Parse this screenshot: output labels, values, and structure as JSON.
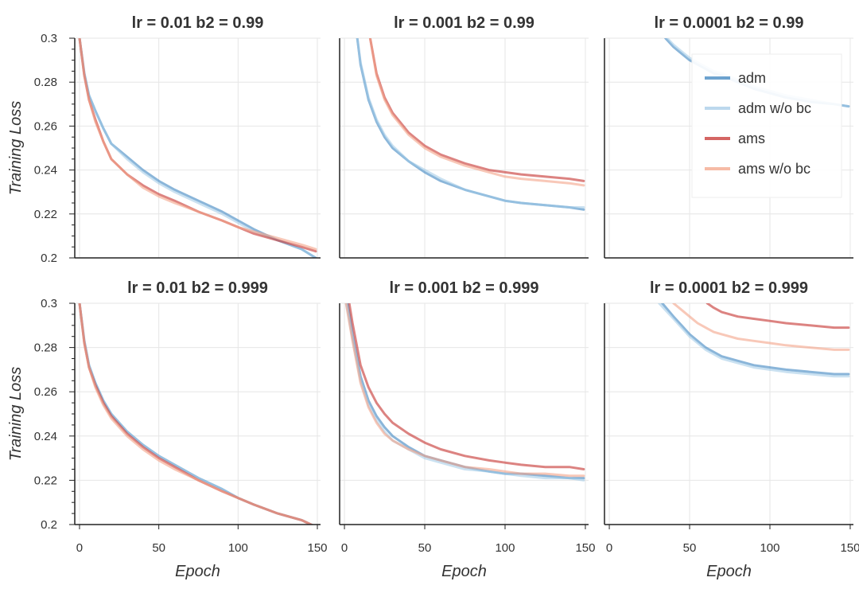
{
  "figure": {
    "x_label": "Epoch",
    "y_label": "Training Loss"
  },
  "series_styles": [
    {
      "key": "adm",
      "label": "adm",
      "color": "#3c84bf",
      "opacity": 0.6,
      "width": 3
    },
    {
      "key": "adm_wobc",
      "label": "adm w/o bc",
      "color": "#9fc8e6",
      "opacity": 0.55,
      "width": 3
    },
    {
      "key": "ams",
      "label": "ams",
      "color": "#c9403d",
      "opacity": 0.65,
      "width": 3
    },
    {
      "key": "ams_wobc",
      "label": "ams w/o bc",
      "color": "#f3a488",
      "opacity": 0.6,
      "width": 3
    }
  ],
  "legend": {
    "items": [
      "adm",
      "adm w/o bc",
      "ams",
      "ams w/o bc"
    ],
    "placement": "top-right of panel lr=0.0001 b2=0.99"
  },
  "chart_data": [
    {
      "type": "line",
      "title": "lr = 0.01   b2 = 0.99",
      "xlim": [
        -3,
        152
      ],
      "ylim": [
        0.2,
        0.3
      ],
      "xticks": [
        0,
        50,
        100,
        150
      ],
      "yticks": [
        "0.2",
        "0.22",
        "0.24",
        "0.26",
        "0.28",
        "0.3"
      ],
      "xlabel": "",
      "ylabel": "Training Loss",
      "series": [
        {
          "name": "adm",
          "x": [
            0,
            3,
            6,
            10,
            15,
            20,
            30,
            40,
            50,
            60,
            75,
            90,
            100,
            110,
            125,
            140,
            149
          ],
          "y": [
            0.3,
            0.284,
            0.274,
            0.267,
            0.259,
            0.252,
            0.246,
            0.24,
            0.235,
            0.231,
            0.226,
            0.221,
            0.217,
            0.213,
            0.208,
            0.204,
            0.2
          ]
        },
        {
          "name": "adm w/o bc",
          "x": [
            0,
            3,
            6,
            10,
            15,
            20,
            30,
            40,
            50,
            60,
            75,
            90,
            100,
            110,
            125,
            140,
            149
          ],
          "y": [
            0.3,
            0.284,
            0.274,
            0.267,
            0.259,
            0.252,
            0.245,
            0.239,
            0.234,
            0.23,
            0.225,
            0.22,
            0.216,
            0.212,
            0.208,
            0.204,
            0.2
          ]
        },
        {
          "name": "ams",
          "x": [
            0,
            3,
            6,
            10,
            15,
            20,
            30,
            40,
            50,
            60,
            75,
            90,
            100,
            110,
            125,
            140,
            149
          ],
          "y": [
            0.3,
            0.283,
            0.272,
            0.263,
            0.253,
            0.245,
            0.238,
            0.233,
            0.229,
            0.226,
            0.221,
            0.217,
            0.214,
            0.211,
            0.208,
            0.205,
            0.203
          ]
        },
        {
          "name": "ams w/o bc",
          "x": [
            0,
            3,
            6,
            10,
            15,
            20,
            30,
            40,
            50,
            60,
            75,
            90,
            100,
            110,
            125,
            140,
            149
          ],
          "y": [
            0.3,
            0.283,
            0.272,
            0.262,
            0.253,
            0.245,
            0.238,
            0.232,
            0.228,
            0.225,
            0.221,
            0.217,
            0.214,
            0.212,
            0.209,
            0.206,
            0.204
          ]
        }
      ]
    },
    {
      "type": "line",
      "title": "lr = 0.001   b2 = 0.99",
      "xlim": [
        -3,
        152
      ],
      "ylim": [
        0.2,
        0.3
      ],
      "xticks": [
        0,
        50,
        100,
        150
      ],
      "yticks": [
        "0.2",
        "0.22",
        "0.24",
        "0.26",
        "0.28",
        "0.3"
      ],
      "xlabel": "",
      "ylabel": "",
      "series": [
        {
          "name": "adm",
          "x": [
            8,
            10,
            15,
            20,
            25,
            30,
            40,
            50,
            60,
            75,
            90,
            100,
            110,
            125,
            140,
            149
          ],
          "y": [
            0.3,
            0.288,
            0.272,
            0.262,
            0.255,
            0.25,
            0.244,
            0.239,
            0.235,
            0.231,
            0.228,
            0.226,
            0.225,
            0.224,
            0.223,
            0.222
          ]
        },
        {
          "name": "adm w/o bc",
          "x": [
            8,
            10,
            15,
            20,
            25,
            30,
            40,
            50,
            60,
            75,
            90,
            100,
            110,
            125,
            140,
            149
          ],
          "y": [
            0.3,
            0.289,
            0.273,
            0.263,
            0.256,
            0.251,
            0.244,
            0.24,
            0.236,
            0.231,
            0.228,
            0.226,
            0.225,
            0.224,
            0.223,
            0.223
          ]
        },
        {
          "name": "ams",
          "x": [
            16,
            20,
            25,
            30,
            40,
            50,
            60,
            75,
            90,
            100,
            110,
            125,
            140,
            149
          ],
          "y": [
            0.3,
            0.284,
            0.273,
            0.266,
            0.257,
            0.251,
            0.247,
            0.243,
            0.24,
            0.239,
            0.238,
            0.237,
            0.236,
            0.235
          ]
        },
        {
          "name": "ams w/o bc",
          "x": [
            16,
            20,
            25,
            30,
            40,
            50,
            60,
            75,
            90,
            100,
            110,
            125,
            140,
            149
          ],
          "y": [
            0.3,
            0.283,
            0.272,
            0.265,
            0.256,
            0.25,
            0.246,
            0.242,
            0.239,
            0.237,
            0.236,
            0.235,
            0.234,
            0.233
          ]
        }
      ]
    },
    {
      "type": "line",
      "title": "lr = 0.0001   b2 = 0.99",
      "xlim": [
        -3,
        152
      ],
      "ylim": [
        0.2,
        0.3
      ],
      "xticks": [
        0,
        50,
        100,
        150
      ],
      "yticks": [
        "0.2",
        "0.22",
        "0.24",
        "0.26",
        "0.28",
        "0.3"
      ],
      "xlabel": "",
      "ylabel": "",
      "series": [
        {
          "name": "adm",
          "x": [
            35,
            40,
            45,
            50,
            55,
            60,
            65,
            70,
            80,
            90,
            100,
            110,
            125,
            140,
            149
          ],
          "y": [
            0.3,
            0.296,
            0.293,
            0.29,
            0.288,
            0.286,
            0.284,
            0.283,
            0.28,
            0.277,
            0.275,
            0.273,
            0.271,
            0.27,
            0.269
          ]
        },
        {
          "name": "adm w/o bc",
          "x": [
            36,
            40,
            45,
            50,
            55,
            60,
            65,
            70,
            80,
            90,
            100,
            110,
            125,
            140,
            149
          ],
          "y": [
            0.3,
            0.297,
            0.294,
            0.291,
            0.289,
            0.287,
            0.285,
            0.284,
            0.281,
            0.278,
            0.276,
            0.274,
            0.272,
            0.27,
            0.269
          ]
        }
      ]
    },
    {
      "type": "line",
      "title": "lr = 0.01   b2 = 0.999",
      "xlim": [
        -3,
        152
      ],
      "ylim": [
        0.2,
        0.3
      ],
      "xticks": [
        0,
        50,
        100,
        150
      ],
      "yticks": [
        "0.2",
        "0.22",
        "0.24",
        "0.26",
        "0.28",
        "0.3"
      ],
      "xlabel": "Epoch",
      "ylabel": "Training Loss",
      "series": [
        {
          "name": "adm",
          "x": [
            0,
            3,
            6,
            10,
            15,
            20,
            30,
            40,
            50,
            60,
            75,
            90,
            100,
            110,
            125,
            140,
            149
          ],
          "y": [
            0.3,
            0.283,
            0.272,
            0.264,
            0.256,
            0.25,
            0.242,
            0.236,
            0.231,
            0.227,
            0.221,
            0.216,
            0.212,
            0.209,
            0.205,
            0.202,
            0.199
          ]
        },
        {
          "name": "adm w/o bc",
          "x": [
            0,
            3,
            6,
            10,
            15,
            20,
            30,
            40,
            50,
            60,
            75,
            90,
            100,
            110,
            125,
            140,
            149
          ],
          "y": [
            0.3,
            0.283,
            0.272,
            0.264,
            0.256,
            0.25,
            0.242,
            0.236,
            0.231,
            0.227,
            0.221,
            0.216,
            0.212,
            0.209,
            0.205,
            0.202,
            0.199
          ]
        },
        {
          "name": "ams",
          "x": [
            0,
            3,
            6,
            10,
            15,
            20,
            30,
            40,
            50,
            60,
            75,
            90,
            100,
            110,
            125,
            140,
            149
          ],
          "y": [
            0.3,
            0.282,
            0.271,
            0.263,
            0.255,
            0.249,
            0.241,
            0.235,
            0.23,
            0.226,
            0.22,
            0.215,
            0.212,
            0.209,
            0.205,
            0.202,
            0.199
          ]
        },
        {
          "name": "ams w/o bc",
          "x": [
            0,
            3,
            6,
            10,
            15,
            20,
            30,
            40,
            50,
            60,
            75,
            90,
            100,
            110,
            125,
            140,
            149
          ],
          "y": [
            0.3,
            0.282,
            0.271,
            0.262,
            0.254,
            0.248,
            0.24,
            0.234,
            0.229,
            0.225,
            0.22,
            0.215,
            0.212,
            0.209,
            0.205,
            0.202,
            0.199
          ]
        }
      ]
    },
    {
      "type": "line",
      "title": "lr = 0.001   b2 = 0.999",
      "xlim": [
        -3,
        152
      ],
      "ylim": [
        0.2,
        0.3
      ],
      "xticks": [
        0,
        50,
        100,
        150
      ],
      "yticks": [
        "0.2",
        "0.22",
        "0.24",
        "0.26",
        "0.28",
        "0.3"
      ],
      "xlabel": "Epoch",
      "ylabel": "",
      "series": [
        {
          "name": "adm",
          "x": [
            2,
            5,
            10,
            15,
            20,
            25,
            30,
            40,
            50,
            60,
            75,
            90,
            100,
            110,
            125,
            140,
            149
          ],
          "y": [
            0.3,
            0.286,
            0.267,
            0.256,
            0.249,
            0.244,
            0.24,
            0.235,
            0.231,
            0.229,
            0.226,
            0.224,
            0.223,
            0.223,
            0.222,
            0.221,
            0.221
          ]
        },
        {
          "name": "adm w/o bc",
          "x": [
            1,
            5,
            10,
            15,
            20,
            25,
            30,
            40,
            50,
            60,
            75,
            90,
            100,
            110,
            125,
            140,
            149
          ],
          "y": [
            0.3,
            0.284,
            0.265,
            0.254,
            0.247,
            0.242,
            0.238,
            0.234,
            0.23,
            0.228,
            0.225,
            0.224,
            0.223,
            0.222,
            0.221,
            0.221,
            0.22
          ]
        },
        {
          "name": "ams",
          "x": [
            3,
            5,
            10,
            15,
            20,
            25,
            30,
            40,
            50,
            60,
            75,
            90,
            100,
            110,
            125,
            140,
            149
          ],
          "y": [
            0.3,
            0.291,
            0.272,
            0.262,
            0.255,
            0.25,
            0.246,
            0.241,
            0.237,
            0.234,
            0.231,
            0.229,
            0.228,
            0.227,
            0.226,
            0.226,
            0.225
          ]
        },
        {
          "name": "ams w/o bc",
          "x": [
            1,
            5,
            10,
            15,
            20,
            25,
            30,
            40,
            50,
            60,
            75,
            90,
            100,
            110,
            125,
            140,
            149
          ],
          "y": [
            0.3,
            0.283,
            0.264,
            0.253,
            0.246,
            0.241,
            0.238,
            0.234,
            0.231,
            0.229,
            0.226,
            0.225,
            0.224,
            0.223,
            0.223,
            0.222,
            0.222
          ]
        }
      ]
    },
    {
      "type": "line",
      "title": "lr = 0.0001   b2 = 0.999",
      "xlim": [
        -3,
        152
      ],
      "ylim": [
        0.2,
        0.3
      ],
      "xticks": [
        0,
        50,
        100,
        150
      ],
      "yticks": [
        "0.2",
        "0.22",
        "0.24",
        "0.26",
        "0.28",
        "0.3"
      ],
      "xlabel": "Epoch",
      "ylabel": "",
      "series": [
        {
          "name": "adm",
          "x": [
            33,
            40,
            45,
            50,
            55,
            60,
            65,
            70,
            80,
            90,
            100,
            110,
            125,
            140,
            149
          ],
          "y": [
            0.3,
            0.294,
            0.29,
            0.286,
            0.283,
            0.28,
            0.278,
            0.276,
            0.274,
            0.272,
            0.271,
            0.27,
            0.269,
            0.268,
            0.268
          ]
        },
        {
          "name": "adm w/o bc",
          "x": [
            31,
            40,
            45,
            50,
            55,
            60,
            65,
            70,
            80,
            90,
            100,
            110,
            125,
            140,
            149
          ],
          "y": [
            0.3,
            0.293,
            0.289,
            0.285,
            0.282,
            0.279,
            0.277,
            0.275,
            0.273,
            0.271,
            0.27,
            0.269,
            0.268,
            0.267,
            0.267
          ]
        },
        {
          "name": "ams",
          "x": [
            61,
            65,
            70,
            80,
            90,
            100,
            110,
            125,
            140,
            149
          ],
          "y": [
            0.3,
            0.298,
            0.296,
            0.294,
            0.293,
            0.292,
            0.291,
            0.29,
            0.289,
            0.289
          ]
        },
        {
          "name": "ams w/o bc",
          "x": [
            40,
            45,
            50,
            55,
            60,
            65,
            70,
            80,
            90,
            100,
            110,
            125,
            140,
            149
          ],
          "y": [
            0.3,
            0.297,
            0.294,
            0.291,
            0.289,
            0.287,
            0.286,
            0.284,
            0.283,
            0.282,
            0.281,
            0.28,
            0.279,
            0.279
          ]
        }
      ]
    }
  ]
}
